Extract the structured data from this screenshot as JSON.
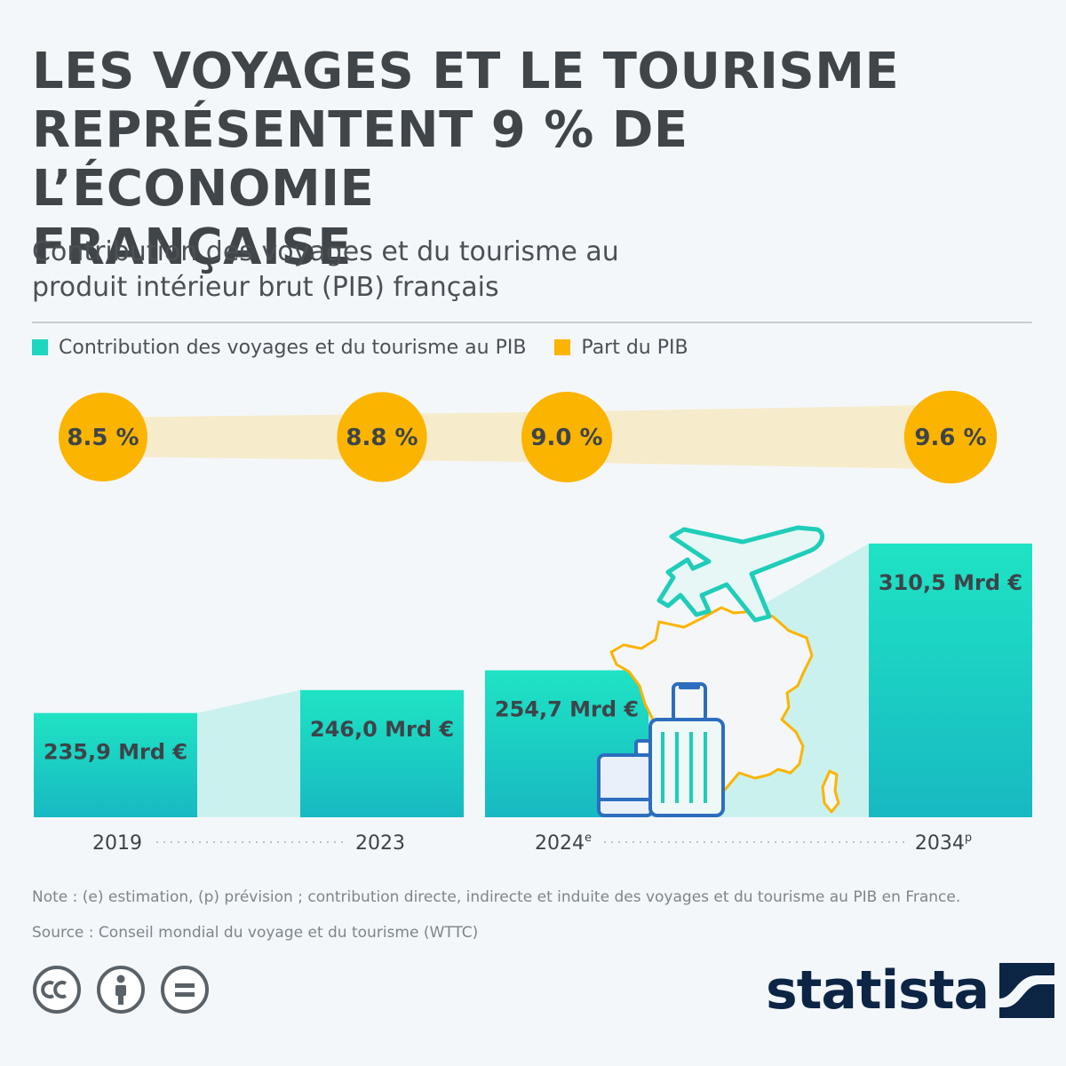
{
  "title_lines": [
    "LES VOYAGES ET LE TOURISME",
    "REPRÉSENTENT 9 % DE L’ÉCONOMIE",
    "FRANÇAISE"
  ],
  "subtitle_lines": [
    "Contribution des voyages et du tourisme au",
    "produit intérieur brut (PIB) français"
  ],
  "legend": {
    "contribution": "Contribution des voyages et du tourisme au PIB",
    "share": "Part du PIB"
  },
  "note": "Note : (e) estimation, (p) prévision ; contribution directe, indirecte et induite des voyages et du tourisme au PIB en France.",
  "source": "Source : Conseil mondial du voyage et du tourisme (WTTC)",
  "brand": "statista",
  "colors": {
    "bar": "#1ed6c2",
    "bar_dark": "#17b9c2",
    "share": "#fbb400",
    "share_band": "#f6ebcb",
    "connector": "#cbf1ee"
  },
  "icons": [
    "airplane-icon",
    "france-map-icon",
    "suitcase-icon",
    "cc-icon",
    "attribution-icon",
    "no-derivatives-icon",
    "statista-logo-icon"
  ],
  "chart_data": {
    "type": "bar",
    "categories": [
      "2019",
      "2023",
      "2024",
      "2034"
    ],
    "superscripts": [
      "",
      "",
      "e",
      "p"
    ],
    "series": [
      {
        "name": "Contribution des voyages et du tourisme au PIB",
        "values": [
          235.9,
          246.0,
          254.7,
          310.5
        ],
        "labels": [
          "235,9 Mrd €",
          "246,0 Mrd €",
          "254,7 Mrd €",
          "310,5 Mrd €"
        ]
      },
      {
        "name": "Part du PIB",
        "values": [
          8.5,
          8.8,
          9.0,
          9.6
        ],
        "labels": [
          "8.5 %",
          "8.8 %",
          "9.0 %",
          "9.6 %"
        ]
      }
    ],
    "ylim": [
      0,
      330
    ]
  }
}
